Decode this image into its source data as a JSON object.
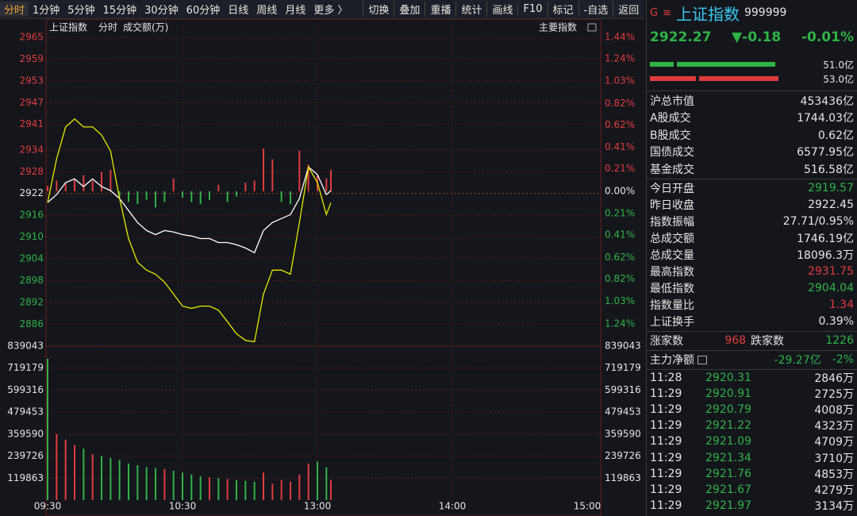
{
  "toolbar": {
    "periods": [
      "分时",
      "1分钟",
      "5分钟",
      "15分钟",
      "30分钟",
      "60分钟",
      "日线",
      "周线",
      "月线",
      "更多 〉"
    ],
    "active": 0,
    "tools": [
      "切换",
      "叠加",
      "重播",
      "统计",
      "画线",
      "F10",
      "标记",
      "-自选",
      "返回"
    ]
  },
  "chart_header": {
    "name": "上证指数",
    "period": "分时",
    "unit": "成交额(万)",
    "switch": "主要指数"
  },
  "chart_data": [
    {
      "type": "line",
      "x": [
        0,
        4,
        8,
        12,
        16,
        20,
        24,
        28,
        32,
        36,
        40,
        44,
        48,
        52,
        56,
        60,
        64,
        68,
        72,
        76,
        80,
        84,
        88,
        92,
        96,
        100,
        104,
        108,
        112,
        116,
        120,
        124,
        126
      ],
      "xlim": [
        0,
        240
      ],
      "xticks": [
        {
          "value": 0,
          "label": "09:30"
        },
        {
          "value": 60,
          "label": "10:30"
        },
        {
          "value": 120,
          "label": "13:00"
        },
        {
          "value": 180,
          "label": "14:00"
        },
        {
          "value": 240,
          "label": "15:00"
        }
      ],
      "ylim": [
        2880,
        2966.5
      ],
      "yticks": [
        2965,
        2959,
        2953,
        2947,
        2941,
        2934,
        2928,
        2922,
        2916,
        2910,
        2904,
        2898,
        2892,
        2886
      ],
      "y2lim": [
        -1.448,
        1.492
      ],
      "y2ticks": [
        {
          "value": 1.44,
          "label": "1.44%"
        },
        {
          "value": 1.24,
          "label": "1.24%"
        },
        {
          "value": 1.03,
          "label": "1.03%"
        },
        {
          "value": 0.82,
          "label": "0.82%"
        },
        {
          "value": 0.62,
          "label": "0.62%"
        },
        {
          "value": 0.41,
          "label": "0.41%"
        },
        {
          "value": 0.21,
          "label": "0.21%"
        },
        {
          "value": 0,
          "label": "0.00%"
        },
        {
          "value": -0.21,
          "label": "0.21%"
        },
        {
          "value": -0.41,
          "label": "0.41%"
        },
        {
          "value": -0.62,
          "label": "0.62%"
        },
        {
          "value": -0.82,
          "label": "0.82%"
        },
        {
          "value": -1.03,
          "label": "1.03%"
        },
        {
          "value": -1.24,
          "label": "1.24%"
        }
      ],
      "base": 2922.45,
      "up_color": "#e03c3c",
      "down_color": "#2fb344",
      "grid": true,
      "series": [
        {
          "color": "#ffffff",
          "values": [
            2919.5,
            2921.7,
            2925.0,
            2926.0,
            2923.9,
            2926.0,
            2923.9,
            2922.8,
            2920.6,
            2917.3,
            2914.0,
            2911.8,
            2910.7,
            2911.8,
            2911.4,
            2910.7,
            2910.3,
            2909.6,
            2909.6,
            2908.5,
            2908.5,
            2907.9,
            2907.0,
            2905.7,
            2911.8,
            2914.0,
            2915.1,
            2916.2,
            2920.6,
            2929.3,
            2927.2,
            2921.7,
            2922.8
          ]
        },
        {
          "color": "#e8e800",
          "values": [
            2919.5,
            2931.5,
            2940.3,
            2942.5,
            2940.3,
            2940.3,
            2938.1,
            2933.7,
            2920.6,
            2909.6,
            2903.1,
            2900.9,
            2899.8,
            2897.6,
            2894.3,
            2891.0,
            2890.4,
            2891.0,
            2891.0,
            2889.9,
            2886.7,
            2883.4,
            2881.6,
            2881.2,
            2894.3,
            2900.9,
            2900.9,
            2899.8,
            2914.0,
            2929.3,
            2925.0,
            2916.2,
            2919.5
          ]
        },
        {
          "type": "bar",
          "axis": "y2",
          "values": [
            0.05,
            0.1,
            0.08,
            0.12,
            0.15,
            0.1,
            0.18,
            0.2,
            -0.05,
            -0.1,
            -0.12,
            -0.08,
            -0.15,
            -0.1,
            0.12,
            -0.06,
            -0.1,
            -0.12,
            -0.08,
            0.06,
            -0.1,
            -0.05,
            0.08,
            0.1,
            0.4,
            0.3,
            -0.1,
            -0.12,
            0.38,
            0.25,
            0.15,
            0.12,
            0.2
          ]
        }
      ]
    },
    {
      "type": "bar",
      "x": [
        0,
        4,
        8,
        12,
        16,
        20,
        24,
        28,
        32,
        36,
        40,
        44,
        48,
        52,
        56,
        60,
        64,
        68,
        72,
        76,
        80,
        84,
        88,
        92,
        96,
        100,
        104,
        108,
        112,
        116,
        120,
        124,
        126
      ],
      "values": [
        770000,
        360000,
        330000,
        300000,
        280000,
        250000,
        240000,
        230000,
        220000,
        200000,
        190000,
        180000,
        175000,
        170000,
        160000,
        150000,
        140000,
        130000,
        125000,
        120000,
        115000,
        110000,
        105000,
        100000,
        150000,
        90000,
        110000,
        100000,
        140000,
        200000,
        210000,
        180000,
        110000
      ],
      "ylim": [
        0,
        839043
      ],
      "yticks": [
        839043,
        719179,
        599316,
        479453,
        359590,
        239726,
        119863
      ],
      "up_color": "#e03c3c",
      "down_color": "#2fb344"
    }
  ],
  "quote": {
    "badge": "G",
    "menu": "≡",
    "name": "上证指数",
    "code": "999999",
    "price": "2922.27",
    "change": "▼-0.18",
    "percent": "-0.01%",
    "color": "#2fb344"
  },
  "flows": [
    {
      "label": "51.0亿",
      "color": "#2fb344"
    },
    {
      "label": "53.0亿",
      "color": "#e03c3c"
    }
  ],
  "stats": [
    [
      {
        "label": "沪总市值",
        "value": "453436亿",
        "color": "#e6e6e6"
      },
      {
        "label": "A股成交",
        "value": "1744.03亿",
        "color": "#e6e6e6"
      },
      {
        "label": "B股成交",
        "value": "0.62亿",
        "color": "#e6e6e6"
      },
      {
        "label": "国债成交",
        "value": "6577.95亿",
        "color": "#e6e6e6"
      },
      {
        "label": "基金成交",
        "value": "516.58亿",
        "color": "#e6e6e6"
      }
    ],
    [
      {
        "label": "今日开盘",
        "value": "2919.57",
        "color": "#2fb344"
      },
      {
        "label": "昨日收盘",
        "value": "2922.45",
        "color": "#e6e6e6"
      },
      {
        "label": "指数振幅",
        "value": "27.71/0.95%",
        "color": "#e6e6e6"
      },
      {
        "label": "总成交额",
        "value": "1746.19亿",
        "color": "#e6e6e6"
      },
      {
        "label": "总成交量",
        "value": "18096.3万",
        "color": "#e6e6e6"
      },
      {
        "label": "最高指数",
        "value": "2931.75",
        "color": "#e03c3c"
      },
      {
        "label": "最低指数",
        "value": "2904.04",
        "color": "#2fb344"
      },
      {
        "label": "指数量比",
        "value": "1.34",
        "color": "#e03c3c"
      },
      {
        "label": "上证换手",
        "value": "0.39%",
        "color": "#e6e6e6"
      }
    ]
  ],
  "breadth": {
    "up_label": "涨家数",
    "up": "968",
    "up_color": "#e03c3c",
    "down_label": "跌家数",
    "down": "1226",
    "down_color": "#2fb344"
  },
  "main_flow": {
    "label": "主力净额",
    "amount": "-29.27亿",
    "percent": "-2%",
    "color": "#2fb344"
  },
  "trades": {
    "price_color": "#2fb344",
    "rows": [
      [
        "11:28",
        "2920.31",
        "2846万"
      ],
      [
        "11:29",
        "2920.91",
        "2725万"
      ],
      [
        "11:29",
        "2920.79",
        "4008万"
      ],
      [
        "11:29",
        "2921.22",
        "4323万"
      ],
      [
        "11:29",
        "2921.09",
        "4709万"
      ],
      [
        "11:29",
        "2921.34",
        "3710万"
      ],
      [
        "11:29",
        "2921.76",
        "4853万"
      ],
      [
        "11:29",
        "2921.67",
        "4279万"
      ],
      [
        "11:29",
        "2921.97",
        "3134万"
      ]
    ]
  }
}
